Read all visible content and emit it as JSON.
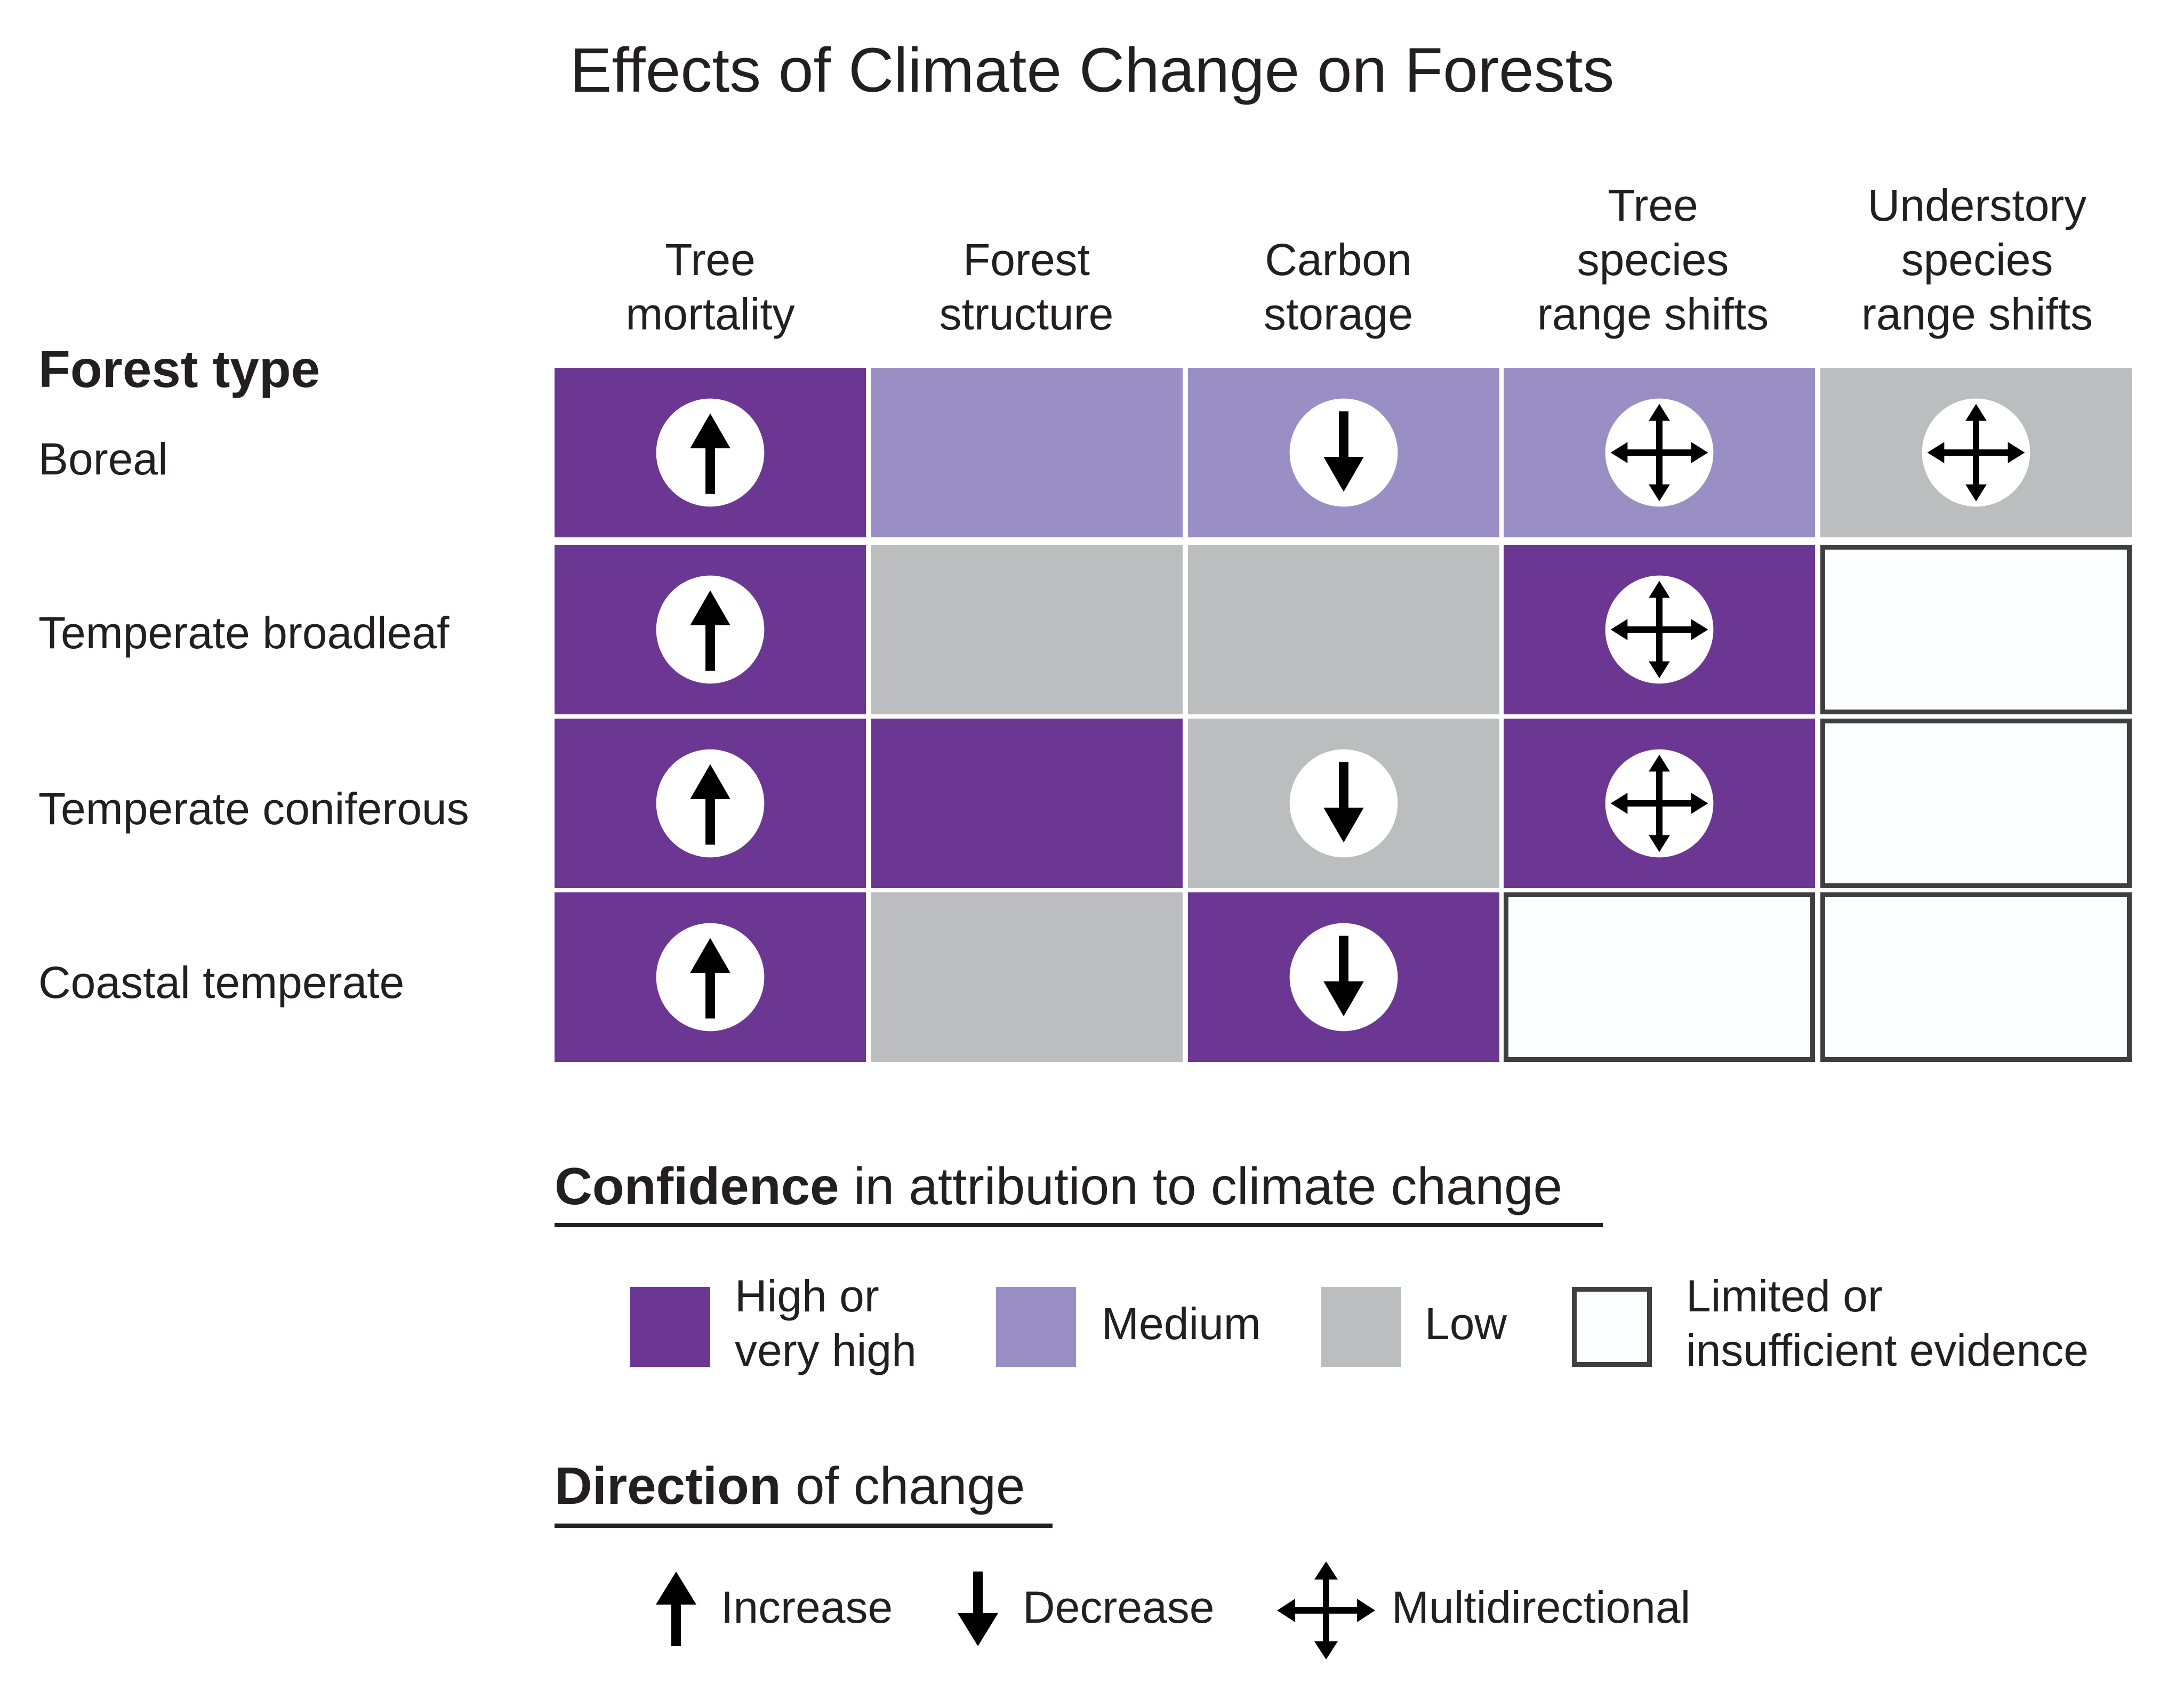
{
  "title": "Effects of Climate Change on Forests",
  "row_header": "Forest type",
  "columns": [
    "Tree\nmortality",
    "Forest\nstructure",
    "Carbon\nstorage",
    "Tree\nspecies\nrange shifts",
    "Understory\nspecies\nrange shifts"
  ],
  "rows": [
    {
      "label": "Boreal",
      "cells": [
        {
          "confidence": "high",
          "direction": "increase"
        },
        {
          "confidence": "medium",
          "direction": "none"
        },
        {
          "confidence": "medium",
          "direction": "decrease"
        },
        {
          "confidence": "medium",
          "direction": "multidirectional"
        },
        {
          "confidence": "low",
          "direction": "multidirectional"
        }
      ]
    },
    {
      "label": "Temperate broadleaf",
      "cells": [
        {
          "confidence": "high",
          "direction": "increase"
        },
        {
          "confidence": "low",
          "direction": "none"
        },
        {
          "confidence": "low",
          "direction": "none"
        },
        {
          "confidence": "high",
          "direction": "multidirectional"
        },
        {
          "confidence": "limited",
          "direction": "none"
        }
      ]
    },
    {
      "label": "Temperate coniferous",
      "cells": [
        {
          "confidence": "high",
          "direction": "increase"
        },
        {
          "confidence": "high",
          "direction": "none"
        },
        {
          "confidence": "low",
          "direction": "decrease"
        },
        {
          "confidence": "high",
          "direction": "multidirectional"
        },
        {
          "confidence": "limited",
          "direction": "none"
        }
      ]
    },
    {
      "label": "Coastal temperate",
      "cells": [
        {
          "confidence": "high",
          "direction": "increase"
        },
        {
          "confidence": "low",
          "direction": "none"
        },
        {
          "confidence": "high",
          "direction": "decrease"
        },
        {
          "confidence": "limited",
          "direction": "none"
        },
        {
          "confidence": "limited",
          "direction": "none"
        }
      ]
    }
  ],
  "confidence_legend": {
    "title_bold": "Confidence",
    "title_rest": " in attribution to climate change",
    "items": [
      {
        "key": "high",
        "label": "High or\nvery high"
      },
      {
        "key": "medium",
        "label": "Medium"
      },
      {
        "key": "low",
        "label": "Low"
      },
      {
        "key": "limited",
        "label": "Limited or\ninsufficient evidence"
      }
    ]
  },
  "direction_legend": {
    "title_bold": "Direction",
    "title_rest": " of change",
    "items": [
      {
        "key": "increase",
        "label": "Increase"
      },
      {
        "key": "decrease",
        "label": "Decrease"
      },
      {
        "key": "multidirectional",
        "label": "Multidirectional"
      }
    ]
  },
  "colors": {
    "high": "#6b3793",
    "medium": "#9a8fc5",
    "low": "#bcbdbf",
    "limited": "#fcfdff",
    "limited_border": "#3f3f42",
    "icon_circle": "#ffffff",
    "arrow": "#000000",
    "text": "#231f20"
  }
}
